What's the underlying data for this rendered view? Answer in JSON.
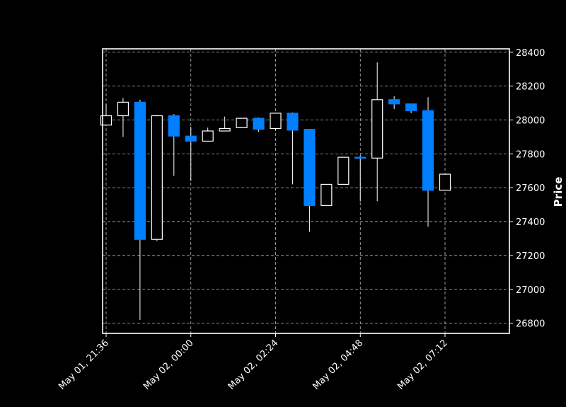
{
  "chart_data": {
    "type": "candlestick",
    "ylabel": "Price",
    "ylim": [
      26740,
      28420
    ],
    "y_ticks": [
      26800,
      27000,
      27200,
      27400,
      27600,
      27800,
      28000,
      28200,
      28400
    ],
    "x_ticks": [
      "May 01, 21:36",
      "May 02, 00:00",
      "May 02, 02:24",
      "May 02, 04:48",
      "May 02, 07:12"
    ],
    "x_tick_positions": [
      0,
      5,
      10,
      15,
      20
    ],
    "grid": true,
    "colors": {
      "up": "#000000",
      "down": "#007fff",
      "edge_up": "#ffffff",
      "wick": "#ffffff",
      "background": "#000000",
      "grid": "#bfbfbf"
    },
    "candles": [
      {
        "open": 27970,
        "high": 28095,
        "low": 27965,
        "close": 28025
      },
      {
        "open": 28025,
        "high": 28130,
        "low": 27900,
        "close": 28105
      },
      {
        "open": 28105,
        "high": 28120,
        "low": 26820,
        "close": 27295
      },
      {
        "open": 27295,
        "high": 28030,
        "low": 27285,
        "close": 28025
      },
      {
        "open": 28025,
        "high": 28035,
        "low": 27670,
        "close": 27905
      },
      {
        "open": 27905,
        "high": 27960,
        "low": 27640,
        "close": 27875
      },
      {
        "open": 27875,
        "high": 27955,
        "low": 27875,
        "close": 27935
      },
      {
        "open": 27935,
        "high": 28020,
        "low": 27935,
        "close": 27950
      },
      {
        "open": 27955,
        "high": 28010,
        "low": 27955,
        "close": 28010
      },
      {
        "open": 28010,
        "high": 28015,
        "low": 27930,
        "close": 27945
      },
      {
        "open": 27950,
        "high": 28040,
        "low": 27940,
        "close": 28040
      },
      {
        "open": 28040,
        "high": 28045,
        "low": 27620,
        "close": 27940
      },
      {
        "open": 27945,
        "high": 27945,
        "low": 27340,
        "close": 27495
      },
      {
        "open": 27495,
        "high": 27620,
        "low": 27495,
        "close": 27620
      },
      {
        "open": 27620,
        "high": 27780,
        "low": 27620,
        "close": 27780
      },
      {
        "open": 27780,
        "high": 27790,
        "low": 27520,
        "close": 27775
      },
      {
        "open": 27775,
        "high": 28340,
        "low": 27520,
        "close": 28120
      },
      {
        "open": 28120,
        "high": 28140,
        "low": 28065,
        "close": 28095
      },
      {
        "open": 28095,
        "high": 28095,
        "low": 28040,
        "close": 28055
      },
      {
        "open": 28055,
        "high": 28135,
        "low": 27370,
        "close": 27585
      },
      {
        "open": 27585,
        "high": 27680,
        "low": 27585,
        "close": 27680
      }
    ]
  }
}
